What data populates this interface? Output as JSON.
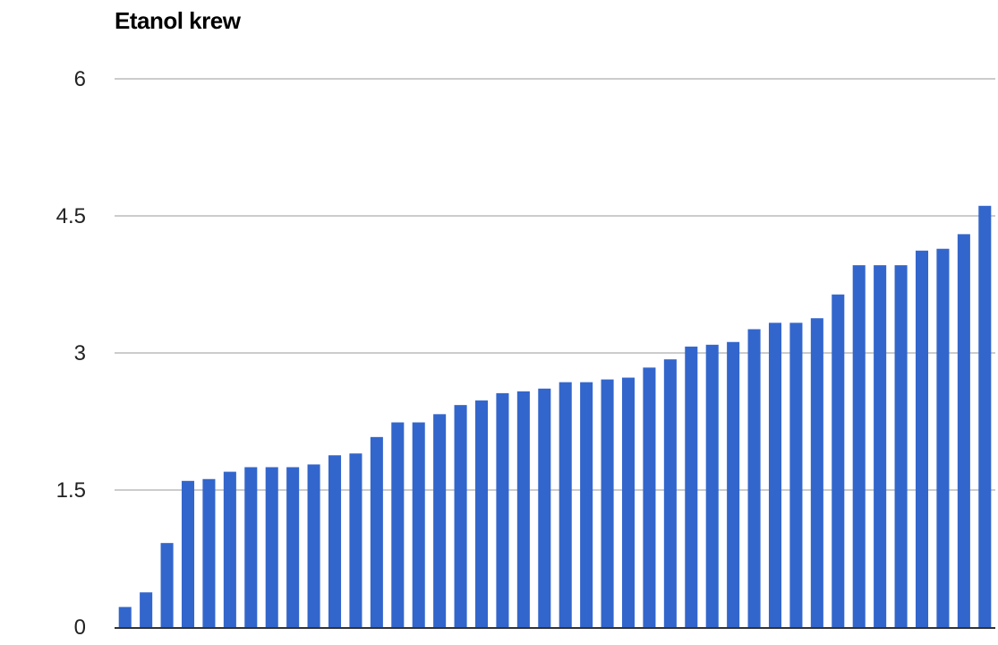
{
  "chart_data": {
    "type": "bar",
    "title": "Etanol krew",
    "xlabel": "",
    "ylabel": "",
    "ylim": [
      0,
      6
    ],
    "yticks": [
      "0",
      "1.5",
      "3",
      "4.5",
      "6"
    ],
    "ytick_values": [
      0,
      1.5,
      3,
      4.5,
      6
    ],
    "grid": true,
    "legend": "none",
    "bar_color": "#3366cc",
    "gridline_color": "#cccccc",
    "values": [
      0.22,
      0.38,
      0.92,
      1.6,
      1.62,
      1.7,
      1.75,
      1.75,
      1.75,
      1.78,
      1.88,
      1.9,
      2.08,
      2.24,
      2.24,
      2.33,
      2.43,
      2.48,
      2.56,
      2.58,
      2.61,
      2.68,
      2.68,
      2.71,
      2.73,
      2.84,
      2.93,
      3.07,
      3.09,
      3.12,
      3.26,
      3.33,
      3.33,
      3.38,
      3.64,
      3.96,
      3.96,
      3.96,
      4.12,
      4.14,
      4.3,
      4.61
    ]
  }
}
